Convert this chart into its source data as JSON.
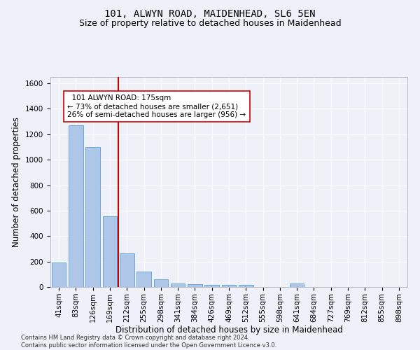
{
  "title": "101, ALWYN ROAD, MAIDENHEAD, SL6 5EN",
  "subtitle": "Size of property relative to detached houses in Maidenhead",
  "xlabel": "Distribution of detached houses by size in Maidenhead",
  "ylabel": "Number of detached properties",
  "categories": [
    "41sqm",
    "83sqm",
    "126sqm",
    "169sqm",
    "212sqm",
    "255sqm",
    "298sqm",
    "341sqm",
    "384sqm",
    "426sqm",
    "469sqm",
    "512sqm",
    "555sqm",
    "598sqm",
    "641sqm",
    "684sqm",
    "727sqm",
    "769sqm",
    "812sqm",
    "855sqm",
    "898sqm"
  ],
  "values": [
    192,
    1270,
    1100,
    558,
    265,
    120,
    60,
    30,
    20,
    15,
    14,
    14,
    2,
    2,
    30,
    2,
    2,
    2,
    2,
    2,
    2
  ],
  "bar_color": "#aec6e8",
  "bar_edge_color": "#5a9fd4",
  "vline_color": "#cc0000",
  "annotation_text": "  101 ALWYN ROAD: 175sqm\n← 73% of detached houses are smaller (2,651)\n26% of semi-detached houses are larger (956) →",
  "annotation_box_color": "#ffffff",
  "annotation_box_edge": "#cc0000",
  "ylim": [
    0,
    1650
  ],
  "yticks": [
    0,
    200,
    400,
    600,
    800,
    1000,
    1200,
    1400,
    1600
  ],
  "footer": "Contains HM Land Registry data © Crown copyright and database right 2024.\nContains public sector information licensed under the Open Government Licence v3.0.",
  "bg_color": "#eef2f8",
  "grid_color": "#ffffff",
  "title_fontsize": 10,
  "subtitle_fontsize": 9,
  "tick_fontsize": 7.5,
  "label_fontsize": 8.5,
  "annotation_fontsize": 7.5,
  "footer_fontsize": 6
}
